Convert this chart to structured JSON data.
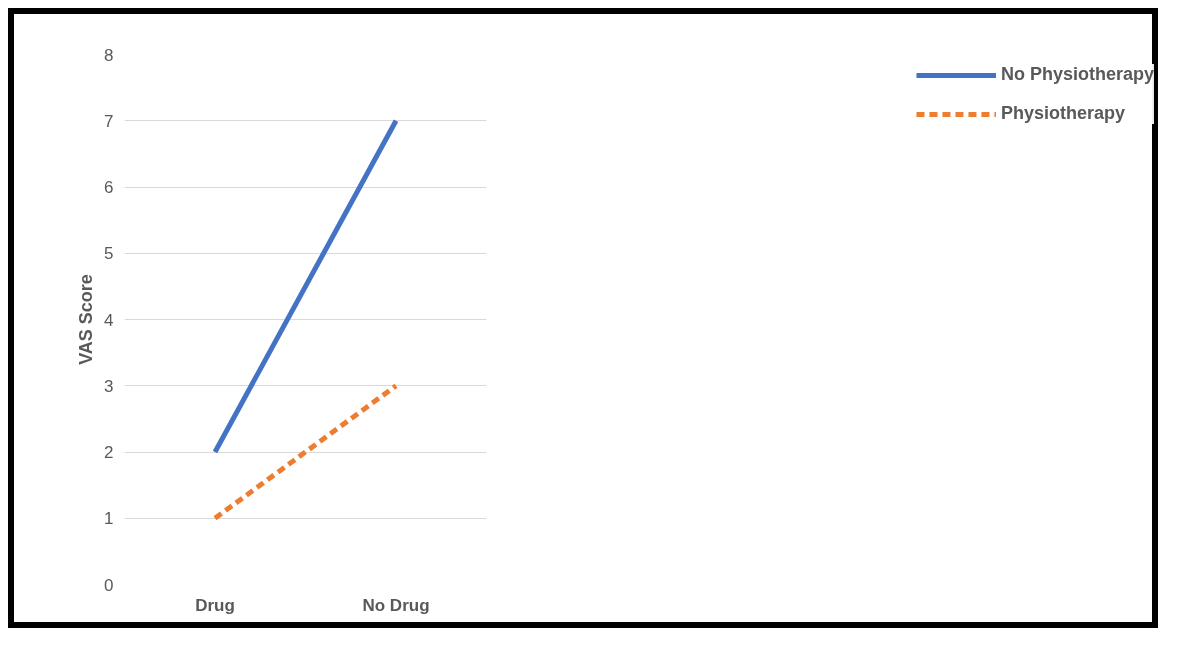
{
  "chart_data": {
    "type": "line",
    "ylabel": "VAS Score",
    "categories": [
      "Drug",
      "No Drug"
    ],
    "series": [
      {
        "name": "No Physiotherapy",
        "color": "#4472c4",
        "values": [
          2,
          7
        ],
        "line_style": "solid"
      },
      {
        "name": "Physiotherapy",
        "color": "#ed7d31",
        "values": [
          1,
          3
        ],
        "line_style": "dashed"
      }
    ],
    "ylim": [
      0,
      8
    ],
    "yticks": [
      0,
      1,
      2,
      3,
      4,
      5,
      6,
      7,
      8
    ],
    "grid": "y",
    "legend": "right",
    "marker": "none"
  }
}
